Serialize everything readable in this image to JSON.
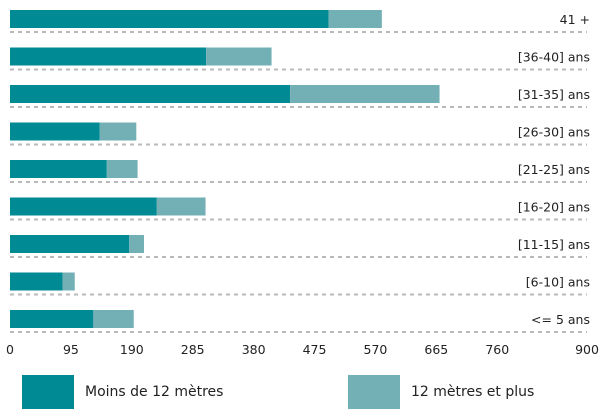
{
  "chart_data": {
    "type": "bar",
    "orientation": "horizontal",
    "stacked": true,
    "categories": [
      "41 +",
      "[36-40] ans",
      "[31-35] ans",
      "[26-30] ans",
      "[21-25] ans",
      "[16-20] ans",
      "[11-15] ans",
      "[6-10] ans",
      "<= 5 ans"
    ],
    "series": [
      {
        "name": "Moins de 12 mètres",
        "color": "#008a94",
        "values": [
          497,
          306,
          437,
          140,
          151,
          229,
          186,
          82,
          130
        ]
      },
      {
        "name": "12 mètres et plus",
        "color": "#73b0b6",
        "values": [
          83,
          102,
          233,
          57,
          48,
          76,
          23,
          19,
          63
        ]
      }
    ],
    "xlim": [
      0,
      900
    ],
    "xticks": [
      "0",
      "95",
      "190",
      "285",
      "380",
      "475",
      "570",
      "665",
      "760",
      "900"
    ],
    "xtick_values": [
      0,
      95,
      190,
      285,
      380,
      475,
      570,
      665,
      760,
      900
    ],
    "grid": "dotted horizontal separators between rows",
    "legend_position": "bottom"
  }
}
